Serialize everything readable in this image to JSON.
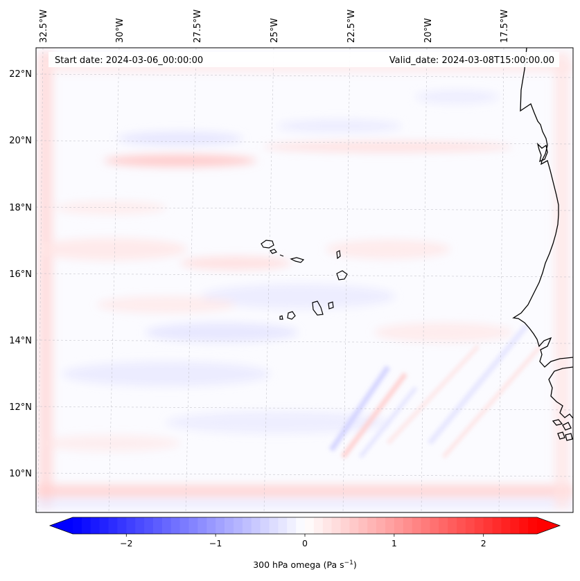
{
  "header": {
    "start_date": "Start date: 2024-03-06_00:00:00",
    "valid_date": "Valid_date: 2024-03-08T15:00:00.00"
  },
  "axes": {
    "lon_labels": [
      "32.5°W",
      "30°W",
      "27.5°W",
      "25°W",
      "22.5°W",
      "20°W",
      "17.5°W"
    ],
    "lat_labels": [
      "22°N",
      "20°N",
      "18°N",
      "16°N",
      "14°N",
      "12°N",
      "10°N"
    ]
  },
  "colorbar": {
    "label_main": "300 hPa omega (Pa s",
    "label_sup": "−1",
    "label_close": ")",
    "ticks": [
      "−2",
      "−1",
      "0",
      "1",
      "2"
    ],
    "tick_values": [
      -2,
      -1,
      0,
      1,
      2
    ],
    "range": [
      -2.6,
      2.6
    ],
    "colormap": "bwr",
    "color_low": "#0000ff",
    "color_mid": "#ffffff",
    "color_high": "#ff0000"
  },
  "map": {
    "field": "300 hPa omega",
    "grid_lines": true,
    "coastline_color": "#000000"
  }
}
